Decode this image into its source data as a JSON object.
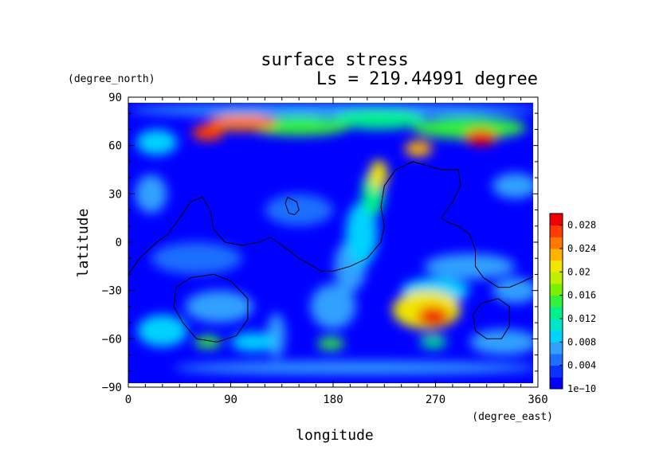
{
  "chart_data": {
    "type": "heatmap",
    "title": "surface stress",
    "subtitle": "Ls = 219.44991 degree",
    "xlabel": "longitude",
    "ylabel": "latitude",
    "x_unit": "(degree_east)",
    "y_unit": "(degree_north)",
    "xlim": [
      0,
      360
    ],
    "ylim": [
      -90,
      90
    ],
    "x_ticks": [
      "0",
      "90",
      "180",
      "270",
      "360"
    ],
    "y_ticks": [
      "90",
      "60",
      "30",
      "0",
      "−30",
      "−60",
      "−90"
    ],
    "colorbar": {
      "min": 0,
      "max": 0.03,
      "tick_labels": [
        "1e−10",
        "0.004",
        "0.008",
        "0.012",
        "0.016",
        "0.02",
        "0.024",
        "0.028"
      ],
      "tick_values": [
        0,
        0.004,
        0.008,
        0.012,
        0.016,
        0.02,
        0.024,
        0.028
      ],
      "colors": [
        "#0000ff",
        "#0a32ff",
        "#1e6eff",
        "#32a0ff",
        "#00d2ff",
        "#00e6c8",
        "#00f08c",
        "#32f03c",
        "#78f000",
        "#bef000",
        "#f0e600",
        "#ffb400",
        "#ff7800",
        "#ff3c00",
        "#f00000"
      ]
    },
    "features": [
      {
        "lon": 100,
        "lat": 74,
        "value": 0.024,
        "rlon": 30,
        "rlat": 5
      },
      {
        "lon": 70,
        "lat": 68,
        "value": 0.026,
        "rlon": 14,
        "rlat": 5
      },
      {
        "lon": 150,
        "lat": 72,
        "value": 0.014,
        "rlon": 45,
        "rlat": 6
      },
      {
        "lon": 220,
        "lat": 76,
        "value": 0.012,
        "rlon": 40,
        "rlat": 6
      },
      {
        "lon": 300,
        "lat": 71,
        "value": 0.014,
        "rlon": 50,
        "rlat": 7
      },
      {
        "lon": 310,
        "lat": 65,
        "value": 0.03,
        "rlon": 14,
        "rlat": 5
      },
      {
        "lon": 25,
        "lat": 62,
        "value": 0.009,
        "rlon": 18,
        "rlat": 8
      },
      {
        "lon": 255,
        "lat": 58,
        "value": 0.022,
        "rlon": 12,
        "rlat": 5
      },
      {
        "lon": 220,
        "lat": 42,
        "value": 0.02,
        "rlon": 8,
        "rlat": 9
      },
      {
        "lon": 215,
        "lat": 30,
        "value": 0.012,
        "rlon": 10,
        "rlat": 14
      },
      {
        "lon": 205,
        "lat": 5,
        "value": 0.009,
        "rlon": 14,
        "rlat": 20
      },
      {
        "lon": 195,
        "lat": -15,
        "value": 0.007,
        "rlon": 14,
        "rlat": 16
      },
      {
        "lon": 268,
        "lat": -46,
        "value": 0.032,
        "rlon": 14,
        "rlat": 6
      },
      {
        "lon": 262,
        "lat": -42,
        "value": 0.02,
        "rlon": 30,
        "rlat": 12
      },
      {
        "lon": 270,
        "lat": -30,
        "value": 0.008,
        "rlon": 30,
        "rlat": 8
      },
      {
        "lon": 70,
        "lat": -62,
        "value": 0.014,
        "rlon": 12,
        "rlat": 4
      },
      {
        "lon": 178,
        "lat": -63,
        "value": 0.015,
        "rlon": 12,
        "rlat": 4
      },
      {
        "lon": 268,
        "lat": -62,
        "value": 0.012,
        "rlon": 12,
        "rlat": 4
      },
      {
        "lon": 110,
        "lat": -62,
        "value": 0.008,
        "rlon": 20,
        "rlat": 6
      },
      {
        "lon": 30,
        "lat": -55,
        "value": 0.008,
        "rlon": 22,
        "rlat": 10
      },
      {
        "lon": 330,
        "lat": -62,
        "value": 0.006,
        "rlon": 30,
        "rlat": 8
      },
      {
        "lon": 130,
        "lat": -58,
        "value": 0.007,
        "rlon": 8,
        "rlat": 14
      },
      {
        "lon": 80,
        "lat": -40,
        "value": 0.007,
        "rlon": 30,
        "rlat": 10
      },
      {
        "lon": 20,
        "lat": 30,
        "value": 0.006,
        "rlon": 14,
        "rlat": 12
      },
      {
        "lon": 340,
        "lat": 35,
        "value": 0.006,
        "rlon": 20,
        "rlat": 8
      },
      {
        "lon": 300,
        "lat": -15,
        "value": 0.006,
        "rlon": 40,
        "rlat": 8
      },
      {
        "lon": 180,
        "lat": -40,
        "value": 0.006,
        "rlon": 20,
        "rlat": 14
      },
      {
        "lon": 60,
        "lat": -10,
        "value": 0.005,
        "rlon": 40,
        "rlat": 10
      },
      {
        "lon": 150,
        "lat": 20,
        "value": 0.005,
        "rlon": 30,
        "rlat": 10
      },
      {
        "lon": 340,
        "lat": -30,
        "value": 0.006,
        "rlon": 20,
        "rlat": 8
      },
      {
        "lon": 200,
        "lat": -78,
        "value": 0.006,
        "rlon": 160,
        "rlat": 4
      },
      {
        "lon": 180,
        "lat": 82,
        "value": 0.006,
        "rlon": 180,
        "rlat": 4
      }
    ],
    "contours": [
      [
        [
          0,
          -20
        ],
        [
          10,
          -10
        ],
        [
          25,
          0
        ],
        [
          35,
          5
        ],
        [
          45,
          15
        ],
        [
          55,
          25
        ],
        [
          65,
          28
        ],
        [
          72,
          20
        ],
        [
          75,
          8
        ],
        [
          85,
          0
        ],
        [
          100,
          -2
        ],
        [
          115,
          0
        ],
        [
          125,
          3
        ],
        [
          135,
          -2
        ],
        [
          150,
          -10
        ],
        [
          170,
          -18
        ],
        [
          180,
          -18
        ],
        [
          195,
          -15
        ],
        [
          210,
          -10
        ],
        [
          222,
          0
        ],
        [
          225,
          10
        ],
        [
          222,
          22
        ],
        [
          225,
          35
        ],
        [
          235,
          45
        ],
        [
          250,
          50
        ],
        [
          260,
          48
        ],
        [
          275,
          45
        ],
        [
          290,
          45
        ],
        [
          292,
          35
        ],
        [
          285,
          25
        ],
        [
          275,
          15
        ],
        [
          282,
          12
        ],
        [
          290,
          10
        ],
        [
          300,
          5
        ],
        [
          305,
          -5
        ],
        [
          305,
          -15
        ],
        [
          312,
          -22
        ],
        [
          325,
          -28
        ],
        [
          335,
          -28
        ],
        [
          345,
          -25
        ],
        [
          360,
          -20
        ]
      ],
      [
        [
          140,
          28
        ],
        [
          148,
          25
        ],
        [
          150,
          20
        ],
        [
          146,
          17
        ],
        [
          141,
          18
        ],
        [
          138,
          24
        ],
        [
          140,
          28
        ]
      ],
      [
        [
          75,
          -20
        ],
        [
          90,
          -24
        ],
        [
          105,
          -35
        ],
        [
          105,
          -48
        ],
        [
          95,
          -58
        ],
        [
          78,
          -62
        ],
        [
          60,
          -60
        ],
        [
          48,
          -50
        ],
        [
          40,
          -40
        ],
        [
          42,
          -28
        ],
        [
          55,
          -22
        ],
        [
          75,
          -20
        ]
      ],
      [
        [
          325,
          -35
        ],
        [
          335,
          -40
        ],
        [
          335,
          -52
        ],
        [
          328,
          -60
        ],
        [
          315,
          -60
        ],
        [
          305,
          -55
        ],
        [
          303,
          -45
        ],
        [
          310,
          -38
        ],
        [
          325,
          -35
        ]
      ]
    ]
  }
}
